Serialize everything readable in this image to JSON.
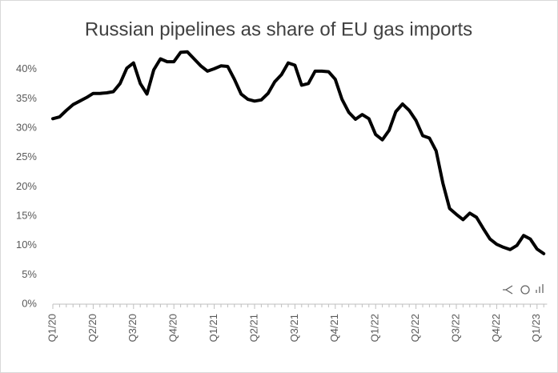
{
  "chart_data": {
    "type": "line",
    "title": "Russian pipelines as share of EU gas imports",
    "categories": [
      "Q1/20",
      null,
      null,
      null,
      null,
      null,
      "Q2/20",
      null,
      null,
      null,
      null,
      null,
      "Q3/20",
      null,
      null,
      null,
      null,
      null,
      "Q4/20",
      null,
      null,
      null,
      null,
      null,
      "Q1/21",
      null,
      null,
      null,
      null,
      null,
      "Q2/21",
      null,
      null,
      null,
      null,
      null,
      "Q3/21",
      null,
      null,
      null,
      null,
      null,
      "Q4/21",
      null,
      null,
      null,
      null,
      null,
      "Q1/22",
      null,
      null,
      null,
      null,
      null,
      "Q2/22",
      null,
      null,
      null,
      null,
      null,
      "Q3/22",
      null,
      null,
      null,
      null,
      null,
      "Q4/22",
      null,
      null,
      null,
      null,
      null,
      "Q1/23",
      null
    ],
    "values": [
      31.6,
      31.9,
      33.0,
      34.0,
      34.6,
      35.2,
      35.9,
      35.9,
      36.0,
      36.2,
      37.6,
      40.2,
      41.1,
      37.6,
      35.8,
      39.9,
      41.8,
      41.3,
      41.3,
      42.9,
      43.0,
      41.8,
      40.6,
      39.7,
      40.1,
      40.6,
      40.5,
      38.3,
      35.8,
      34.9,
      34.6,
      34.8,
      35.9,
      37.9,
      39.1,
      41.1,
      40.7,
      37.3,
      37.6,
      39.7,
      39.7,
      39.6,
      38.3,
      34.9,
      32.7,
      31.5,
      32.3,
      31.6,
      28.9,
      28.0,
      29.6,
      32.8,
      34.1,
      33.0,
      31.3,
      28.7,
      28.3,
      26.1,
      20.6,
      16.3,
      15.3,
      14.4,
      15.5,
      14.8,
      12.9,
      11.1,
      10.2,
      9.7,
      9.3,
      10.0,
      11.7,
      11.1,
      9.4,
      8.6
    ],
    "color": "#000000",
    "ylim": [
      0,
      45
    ],
    "yticks": [
      {
        "value": 0,
        "label": "0%"
      },
      {
        "value": 5,
        "label": "5%"
      },
      {
        "value": 10,
        "label": "10%"
      },
      {
        "value": 15,
        "label": "15%"
      },
      {
        "value": 20,
        "label": "20%"
      },
      {
        "value": 25,
        "label": "25%"
      },
      {
        "value": 30,
        "label": "30%"
      },
      {
        "value": 35,
        "label": "35%"
      },
      {
        "value": 40,
        "label": "40%"
      }
    ],
    "grid": false
  }
}
